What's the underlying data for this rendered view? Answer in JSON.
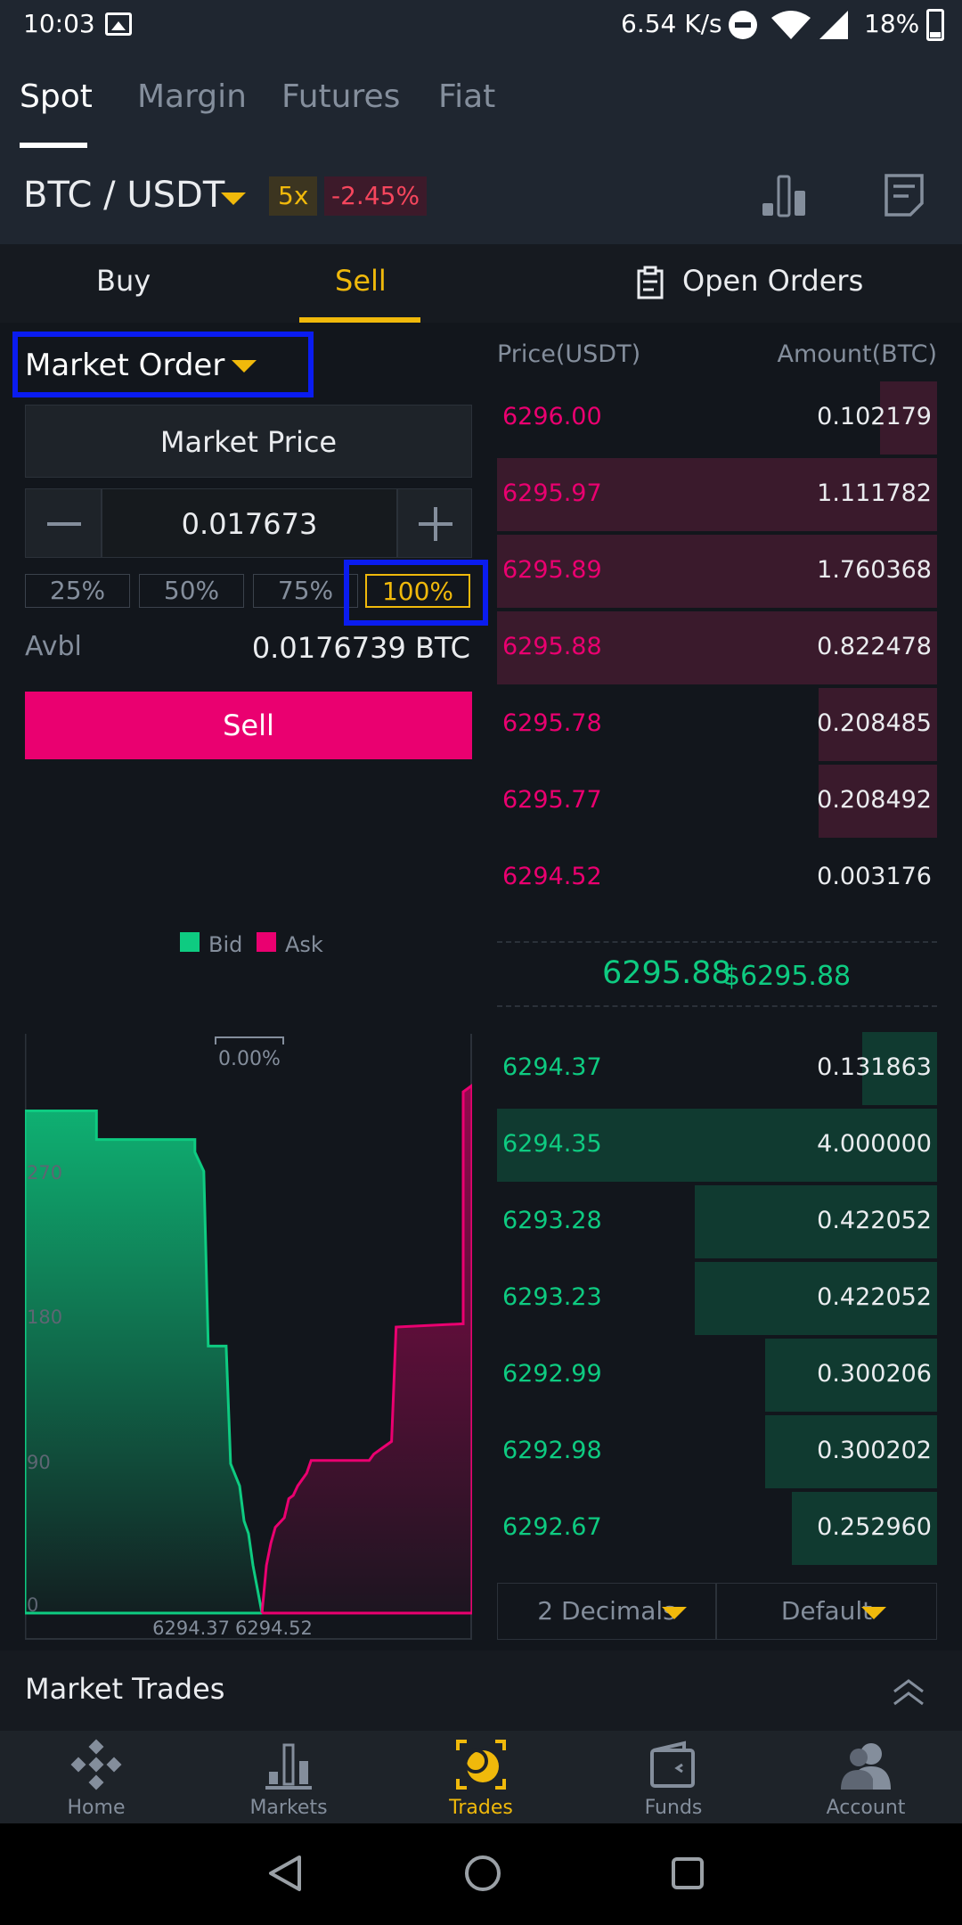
{
  "status_bar": {
    "time": "10:03",
    "speed": "6.54 K/s",
    "battery": "18%"
  },
  "top_tabs": [
    "Spot",
    "Margin",
    "Futures",
    "Fiat"
  ],
  "pair": {
    "name": "BTC / USDT",
    "leverage": "5x",
    "change": "-2.45%"
  },
  "trade_tabs": {
    "buy": "Buy",
    "sell": "Sell",
    "open_orders": "Open Orders"
  },
  "order_form": {
    "order_type": "Market Order",
    "price_field": "Market Price",
    "amount": "0.017673",
    "percent_options": [
      "25%",
      "50%",
      "75%",
      "100%"
    ],
    "avbl_label": "Avbl",
    "avbl_value": "0.0176739 BTC",
    "sell_button": "Sell"
  },
  "depth_legend": {
    "bid": "Bid",
    "ask": "Ask",
    "bid_color": "#0ecb81",
    "ask_color": "#ea0070"
  },
  "chart_data": {
    "type": "area",
    "title": "",
    "tooltip": "0.00%",
    "y_ticks": [
      "270",
      "180",
      "90",
      "0"
    ],
    "ylim": [
      0,
      360
    ],
    "x_labels": [
      "6294.37",
      "6294.52"
    ],
    "series": [
      {
        "name": "Bid",
        "points": [
          [
            0,
            316
          ],
          [
            0.16,
            316
          ],
          [
            0.16,
            298
          ],
          [
            0.38,
            298
          ],
          [
            0.38,
            290
          ],
          [
            0.4,
            278
          ],
          [
            0.41,
            168
          ],
          [
            0.45,
            168
          ],
          [
            0.46,
            94
          ],
          [
            0.48,
            80
          ],
          [
            0.49,
            58
          ],
          [
            0.5,
            50
          ],
          [
            0.51,
            30
          ],
          [
            0.53,
            0
          ]
        ]
      },
      {
        "name": "Ask",
        "points": [
          [
            0.53,
            0
          ],
          [
            0.54,
            30
          ],
          [
            0.55,
            44
          ],
          [
            0.56,
            54
          ],
          [
            0.58,
            60
          ],
          [
            0.59,
            72
          ],
          [
            0.6,
            74
          ],
          [
            0.61,
            80
          ],
          [
            0.62,
            84
          ],
          [
            0.63,
            88
          ],
          [
            0.64,
            96
          ],
          [
            0.65,
            96
          ],
          [
            0.77,
            96
          ],
          [
            0.78,
            100
          ],
          [
            0.8,
            104
          ],
          [
            0.82,
            108
          ],
          [
            0.83,
            180
          ],
          [
            0.98,
            182
          ],
          [
            0.98,
            328
          ],
          [
            1.0,
            332
          ]
        ]
      }
    ]
  },
  "order_book": {
    "header_price": "Price(USDT)",
    "header_amount": "Amount(BTC)",
    "asks": [
      {
        "price": "6296.00",
        "amount": "0.102179",
        "depth": 0.13
      },
      {
        "price": "6295.97",
        "amount": "1.111782",
        "depth": 1.0
      },
      {
        "price": "6295.89",
        "amount": "1.760368",
        "depth": 1.0
      },
      {
        "price": "6295.88",
        "amount": "0.822478",
        "depth": 1.0
      },
      {
        "price": "6295.78",
        "amount": "0.208485",
        "depth": 0.27
      },
      {
        "price": "6295.77",
        "amount": "0.208492",
        "depth": 0.27
      },
      {
        "price": "6294.52",
        "amount": "0.003176",
        "depth": 0.0
      }
    ],
    "mid_price": "6295.88",
    "mid_fiat": "$6295.88",
    "bids": [
      {
        "price": "6294.37",
        "amount": "0.131863",
        "depth": 0.17
      },
      {
        "price": "6294.35",
        "amount": "4.000000",
        "depth": 1.0
      },
      {
        "price": "6293.28",
        "amount": "0.422052",
        "depth": 0.55
      },
      {
        "price": "6293.23",
        "amount": "0.422052",
        "depth": 0.55
      },
      {
        "price": "6292.99",
        "amount": "0.300206",
        "depth": 0.39
      },
      {
        "price": "6292.98",
        "amount": "0.300202",
        "depth": 0.39
      },
      {
        "price": "6292.67",
        "amount": "0.252960",
        "depth": 0.33
      }
    ],
    "decimals": "2 Decimals",
    "view": "Default"
  },
  "market_trades": {
    "title": "Market Trades"
  },
  "bottom_nav": [
    {
      "label": "Home",
      "icon": "binance-logo-icon"
    },
    {
      "label": "Markets",
      "icon": "markets-icon"
    },
    {
      "label": "Trades",
      "icon": "trades-icon"
    },
    {
      "label": "Funds",
      "icon": "wallet-icon"
    },
    {
      "label": "Account",
      "icon": "account-icon"
    }
  ]
}
